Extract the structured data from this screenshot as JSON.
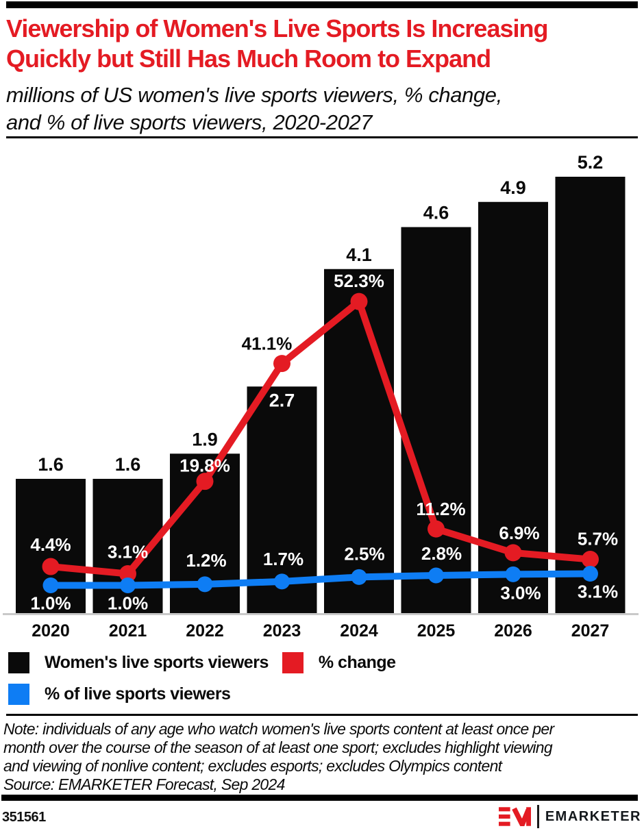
{
  "theme": {
    "accent_red": "#e41b23",
    "line_blue": "#0e7df4",
    "bar_black": "#0a0a0a",
    "axis_gray": "#c9c9c9",
    "label_white": "#ffffff"
  },
  "header": {
    "title_lines": [
      "Viewership of Women's Live Sports Is Increasing",
      "Quickly but Still Has Much Room to Expand"
    ],
    "subtitle_lines": [
      "millions of US women's live sports viewers, % change,",
      "and % of live sports viewers, 2020-2027"
    ]
  },
  "chart_data": {
    "type": "bar+line",
    "categories": [
      "2020",
      "2021",
      "2022",
      "2023",
      "2024",
      "2025",
      "2026",
      "2027"
    ],
    "grid": "off",
    "legend_position": "bottom",
    "value_axis": {
      "visible": false,
      "bar_range_millions": [
        0,
        5.6
      ],
      "pct_range": [
        0,
        58
      ]
    },
    "series": [
      {
        "name": "Women's live sports viewers",
        "type": "bar",
        "unit": "millions",
        "color": "#0a0a0a",
        "values": [
          1.6,
          1.6,
          1.9,
          2.7,
          4.1,
          4.6,
          4.9,
          5.2
        ],
        "labels": [
          "1.6",
          "1.6",
          "1.9",
          "2.7",
          "4.1",
          "4.6",
          "4.9",
          "5.2"
        ],
        "label_pos": [
          "above",
          "above",
          "above",
          "inside",
          "above",
          "above",
          "above",
          "above"
        ]
      },
      {
        "name": "% change",
        "type": "line",
        "unit": "%",
        "color": "#e41b23",
        "values": [
          4.4,
          3.1,
          19.8,
          41.1,
          52.3,
          11.2,
          6.9,
          5.7
        ],
        "labels": [
          "4.4%",
          "3.1%",
          "19.8%",
          "41.1%",
          "52.3%",
          "11.2%",
          "6.9%",
          "5.7%"
        ],
        "label_offsets": [
          [
            0,
            -32
          ],
          [
            0,
            -32
          ],
          [
            0,
            -23
          ],
          [
            -22,
            -29
          ],
          [
            0,
            -30
          ],
          [
            7,
            -29
          ],
          [
            9,
            -29
          ],
          [
            11,
            -30
          ]
        ],
        "label_colors": [
          "#ffffff",
          "#ffffff",
          "#ffffff",
          "#0a0a0a",
          "#ffffff",
          "#ffffff",
          "#ffffff",
          "#ffffff"
        ]
      },
      {
        "name": "% of live sports viewers",
        "type": "line",
        "unit": "%",
        "color": "#0e7df4",
        "values": [
          1.0,
          1.0,
          1.2,
          1.7,
          2.5,
          2.8,
          3.0,
          3.1
        ],
        "labels": [
          "1.0%",
          "1.0%",
          "1.2%",
          "1.7%",
          "2.5%",
          "2.8%",
          "3.0%",
          "3.1%"
        ],
        "label_offsets": [
          [
            0,
            26
          ],
          [
            0,
            26
          ],
          [
            2,
            -35
          ],
          [
            2,
            -33
          ],
          [
            8,
            -34
          ],
          [
            8,
            -32
          ],
          [
            11,
            27
          ],
          [
            11,
            26
          ]
        ],
        "label_colors": [
          "#ffffff",
          "#ffffff",
          "#ffffff",
          "#ffffff",
          "#ffffff",
          "#ffffff",
          "#ffffff",
          "#ffffff"
        ]
      }
    ]
  },
  "legend": {
    "items": [
      {
        "label": "Women's live sports viewers",
        "color": "#0a0a0a"
      },
      {
        "label": "% change",
        "color": "#e41b23"
      },
      {
        "label": "% of live sports viewers",
        "color": "#0e7df4"
      }
    ]
  },
  "notes": {
    "note_lines": [
      "Note: individuals of any age who watch women's live sports content at least once per",
      "month over the course of the season of at least one sport; excludes highlight viewing",
      "and viewing of nonlive content; excludes esports; excludes Olympics content"
    ],
    "source_line": "Source: EMARKETER Forecast, Sep 2024"
  },
  "footer": {
    "chart_id": "351561",
    "brand_name": "EMARKETER"
  }
}
